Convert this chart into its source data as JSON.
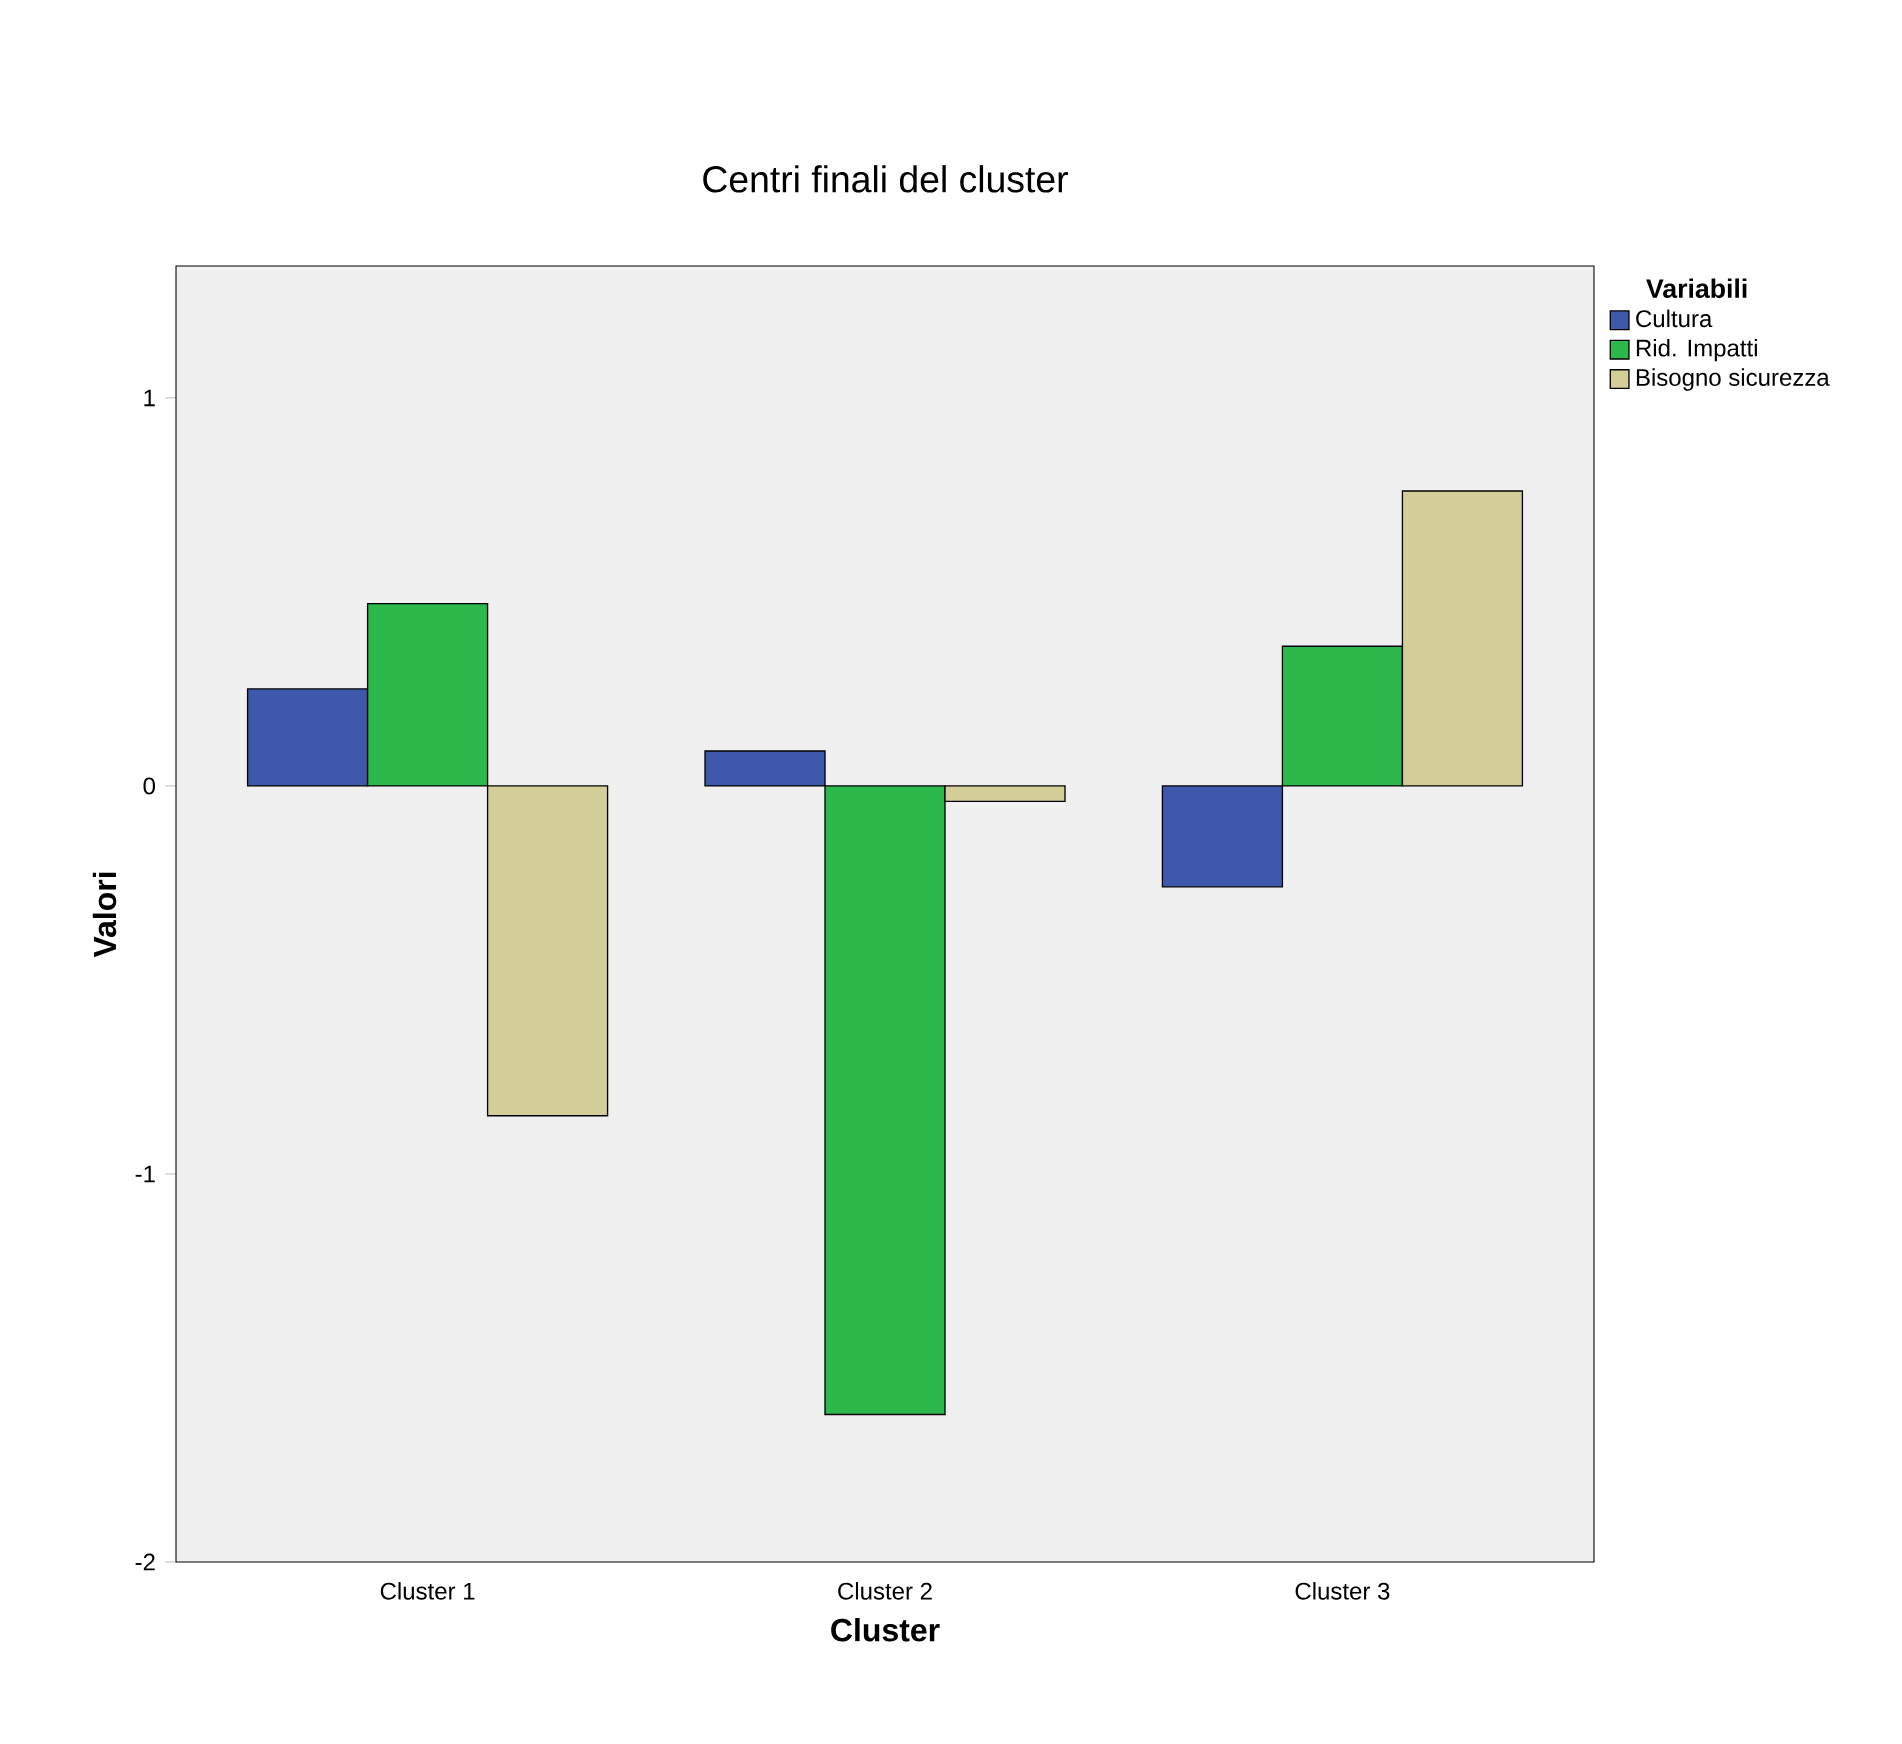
{
  "chart_data": {
    "type": "bar",
    "title": "Centri finali del cluster",
    "xlabel": "Cluster",
    "ylabel": "Valori",
    "legend_title": "Variabili",
    "categories": [
      "Cluster 1",
      "Cluster 2",
      "Cluster 3"
    ],
    "series": [
      {
        "name": "Cultura",
        "color": "#3e58ac",
        "values": [
          0.25,
          0.09,
          -0.26
        ]
      },
      {
        "name": "Rid. Impatti",
        "color": "#2db84b",
        "values": [
          0.47,
          -1.62,
          0.36
        ]
      },
      {
        "name": "Bisogno sicurezza",
        "color": "#d3ce97",
        "values": [
          -0.85,
          -0.04,
          0.76
        ]
      }
    ],
    "ylim": [
      -2,
      1.34
    ],
    "yticks": [
      -2,
      -1,
      0,
      1
    ],
    "legend": "top right"
  }
}
